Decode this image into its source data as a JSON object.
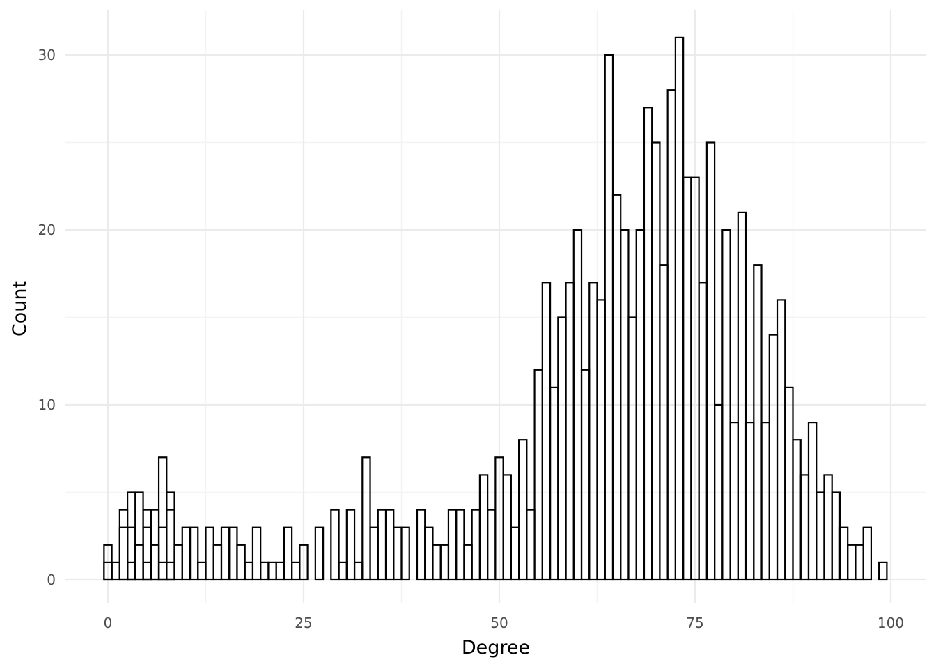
{
  "chart_data": {
    "type": "bar",
    "xlabel": "Degree",
    "ylabel": "Count",
    "xlim": [
      -5,
      102
    ],
    "ylim": [
      -1.5,
      32
    ],
    "x_ticks": [
      0,
      25,
      50,
      75,
      100
    ],
    "x_tick_labels": [
      "0",
      "25",
      "50",
      "75",
      "100"
    ],
    "y_ticks": [
      0,
      10,
      20,
      30
    ],
    "y_tick_labels": [
      "0",
      "10",
      "20",
      "30"
    ],
    "x_minor_ticks": [
      12.5,
      37.5,
      62.5,
      87.5
    ],
    "y_minor_ticks": [
      5,
      15,
      25
    ],
    "grid": true,
    "bar_fill": "#ffffff",
    "bar_stroke": "#000000",
    "grid_color": "#ebebeb",
    "bin_width": 1,
    "series": [
      {
        "x": [
          0,
          1,
          2,
          3,
          4,
          5,
          6,
          7,
          8,
          9,
          10,
          11,
          12,
          13,
          14,
          15,
          16,
          17,
          18,
          19,
          20,
          21,
          22,
          23,
          24,
          25,
          26,
          27,
          28,
          29,
          30,
          31,
          32,
          33,
          34,
          35,
          36,
          37,
          38,
          39,
          40,
          41,
          42,
          43,
          44,
          45,
          46,
          47,
          48,
          49,
          50,
          51,
          52,
          53,
          54,
          55,
          56,
          57,
          58,
          59,
          60,
          61,
          62,
          63,
          64,
          65,
          66,
          67,
          68,
          69,
          70,
          71,
          72,
          73,
          74,
          75,
          76,
          77,
          78,
          79,
          80,
          81,
          82,
          83,
          84,
          85,
          86,
          87,
          88,
          89,
          90,
          91,
          92,
          93,
          94,
          95,
          96,
          97,
          98,
          99
        ],
        "values": [
          2,
          1,
          4,
          5,
          5,
          4,
          4,
          7,
          5,
          2,
          3,
          3,
          1,
          3,
          2,
          3,
          3,
          2,
          1,
          3,
          1,
          1,
          1,
          3,
          1,
          2,
          0,
          3,
          0,
          4,
          1,
          4,
          1,
          7,
          3,
          4,
          4,
          3,
          3,
          0,
          4,
          3,
          2,
          2,
          4,
          4,
          2,
          4,
          6,
          4,
          7,
          6,
          3,
          8,
          4,
          12,
          17,
          11,
          15,
          17,
          20,
          12,
          17,
          16,
          30,
          22,
          20,
          15,
          20,
          27,
          25,
          18,
          28,
          31,
          23,
          23,
          17,
          25,
          10,
          20,
          9,
          21,
          9,
          18,
          9,
          14,
          16,
          11,
          8,
          6,
          9,
          5,
          6,
          5,
          3,
          2,
          2,
          3,
          0,
          1
        ]
      },
      {
        "x": [
          0,
          2,
          3,
          4,
          5,
          6,
          7,
          8
        ],
        "values": [
          1,
          3,
          3,
          2,
          3,
          2,
          3,
          4
        ]
      },
      {
        "x": [
          3,
          5,
          7,
          8
        ],
        "values": [
          1,
          1,
          1,
          1
        ]
      }
    ]
  }
}
